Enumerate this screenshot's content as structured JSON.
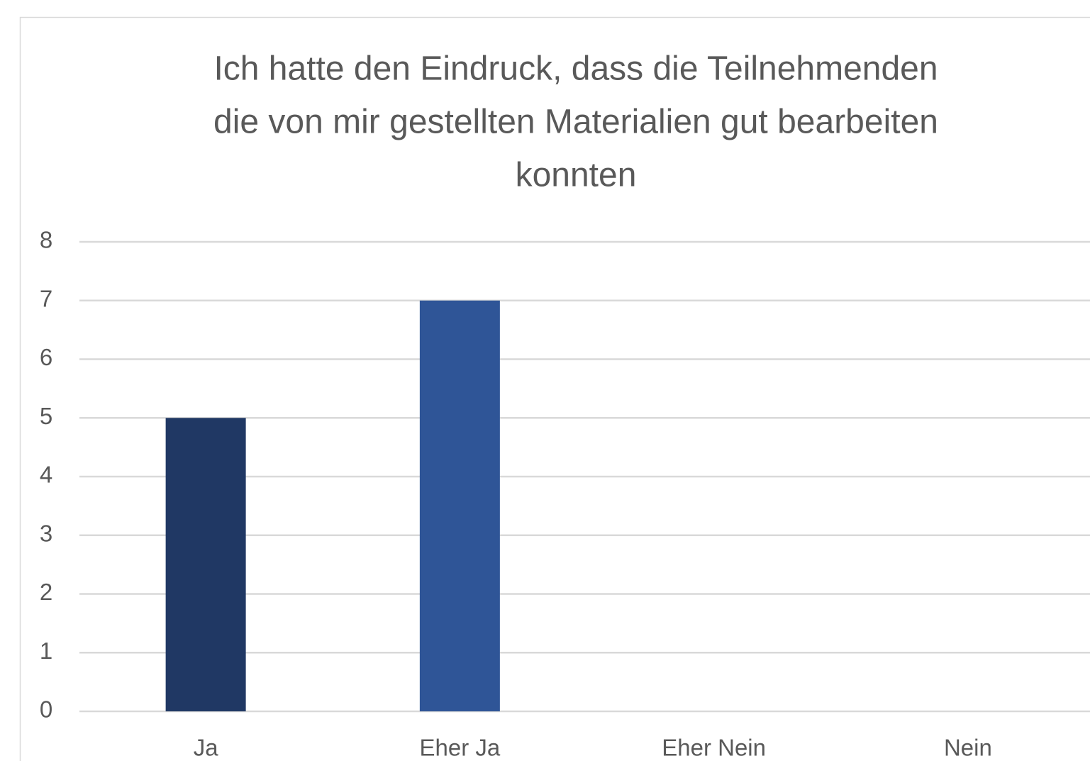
{
  "chart_data": {
    "type": "bar",
    "title": [
      "Ich hatte den Eindruck, dass die Teilnehmenden",
      "die von mir gestellten Materialien gut bearbeiten",
      "konnten"
    ],
    "categories": [
      "Ja",
      "Eher Ja",
      "Eher Nein",
      "Nein"
    ],
    "values": [
      5,
      7,
      0,
      0
    ],
    "colors": [
      "#203864",
      "#2f5597",
      "#8faadc",
      "#b4c7e7"
    ],
    "ylim": [
      0,
      8
    ],
    "yticks": [
      0,
      1,
      2,
      3,
      4,
      5,
      6,
      7,
      8
    ],
    "grid": true
  }
}
